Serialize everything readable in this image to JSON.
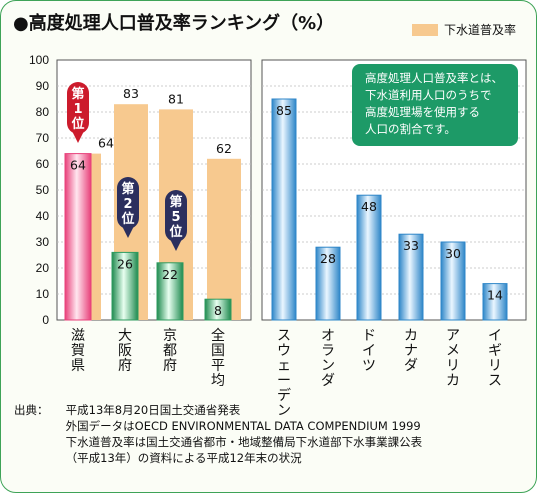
{
  "title": "●高度処理人口普及率ランキング（%）",
  "legend_label": "下水道普及率",
  "callout": {
    "lines": [
      "高度処理人口普及率とは、",
      "下水道利用人口のうちで",
      "高度処理場を使用する",
      "人口の割合です。"
    ]
  },
  "badges": [
    {
      "text": "第1位",
      "category": "滋賀県"
    },
    {
      "text": "第2位",
      "category": "大阪府"
    },
    {
      "text": "第5位",
      "category": "京都府"
    }
  ],
  "source": {
    "label": "出典：",
    "lines": [
      "平成13年8月20日国土交通省発表",
      "外国データはOECD ENVIRONMENTAL DATA COMPENDIUM 1999",
      "下水道普及率は国土交通省都市・地域整備局下水道部下水事業課公表",
      "（平成13年）の資料による平成12年末の状況"
    ]
  },
  "colors": {
    "sewer_bar": "#f7c98f",
    "highlight_bar": "#e8407a",
    "japan_bar": "#2e9b5f",
    "foreign_bar": "#2e86c8",
    "badge_red": "#cc1b2c",
    "badge_navy": "#2b2f5e",
    "callout": "#1d9a67",
    "frame": "#3ea357"
  },
  "chart_data": {
    "type": "bar",
    "ylim": [
      0,
      100
    ],
    "yticks": [
      0,
      10,
      20,
      30,
      40,
      50,
      60,
      70,
      80,
      90,
      100
    ],
    "panels": [
      {
        "categories": [
          "滋賀県",
          "大阪府",
          "京都府",
          "全国平均"
        ],
        "series": [
          {
            "name": "高度処理人口普及率",
            "values": [
              64,
              26,
              22,
              8
            ]
          },
          {
            "name": "下水道普及率",
            "values": [
              64,
              83,
              81,
              62
            ]
          }
        ]
      },
      {
        "categories": [
          "スウェーデン",
          "オランダ",
          "ドイツ",
          "カナダ",
          "アメリカ",
          "イギリス"
        ],
        "series": [
          {
            "name": "高度処理人口普及率",
            "values": [
              85,
              28,
              48,
              33,
              30,
              14
            ]
          }
        ]
      }
    ]
  }
}
